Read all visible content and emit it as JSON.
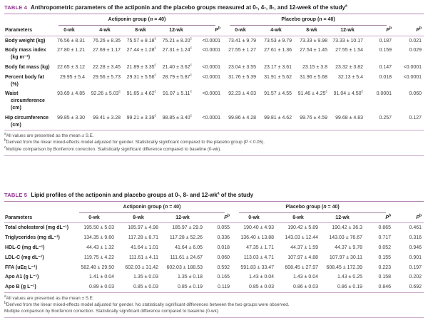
{
  "colors": {
    "table_label": "#8e2f8e",
    "rule": "#c7a3c7",
    "rule_dark": "#b286b2",
    "text": "#3a3a3a"
  },
  "table4": {
    "label": "TABLE 4",
    "title_pre": " Anthropometric parameters of the actiponin and the placebo groups measured at 0-, 4-, 8-, and 12-week of the study",
    "title_sup": "a",
    "title_post": "",
    "groups": [
      {
        "pre": "Actiponin group (",
        "n": "n",
        "post": " = 40)"
      },
      {
        "pre": "Placebo group (",
        "n": "n",
        "post": " = 40)"
      }
    ],
    "col_headers": {
      "parameters": "Parameters",
      "weeks1": [
        "0-wk",
        "4-wk",
        "8-wk",
        "12-wk"
      ],
      "weeks2": [
        "0-wk",
        "4-wk",
        "8-wk",
        "12-wk"
      ],
      "p": "P",
      "p_sup": "b"
    },
    "rows": [
      {
        "label": "Body weight (kg)",
        "values": [
          "76.56 ± 8.31",
          "76.26 ± 8.35",
          "75.57 ± 8.18^c",
          "75.21 ± 8.20^c",
          "<0.0001",
          "73.41 ± 9.79",
          "73.53 ± 9.79",
          "73.33 ± 9.98",
          "73.33 ± 10.17",
          "0.187",
          "0.021"
        ]
      },
      {
        "label": "Body mass index (kg m⁻²)",
        "values": [
          "27.80 ± 1.21",
          "27.69 ± 1.17",
          "27.44 ± 1.28^c",
          "27.31 ± 1.24^c",
          "<0.0001",
          "27.55 ± 1.27",
          "27.61 ± 1.36",
          "27.54 ± 1.45",
          "27.55 ± 1.54",
          "0.159",
          "0.029"
        ]
      },
      {
        "label": "Body fat mass (kg)",
        "values": [
          "22.65 ± 3.12",
          "22.28 ± 3.45",
          "21.89 ± 3.35^c",
          "21.40 ± 3.62^c",
          "<0.0001",
          "23.04 ± 3.55",
          "23.17 ± 3.61",
          "23.15 ± 3.8",
          "23.32 ± 3.82",
          "0.147",
          "<0.0001"
        ]
      },
      {
        "label": "Percent body fat (%)",
        "values": [
          "29.95 ± 5.4",
          "29.56 ± 5.73",
          "29.31 ± 5.56^c",
          "28.79 ± 5.87^c",
          "<0.0001",
          "31.76 ± 5.39",
          "31.91 ± 5.62",
          "31.96 ± 5.68",
          "32.13 ± 5.4",
          "0.018",
          "<0.0001"
        ]
      },
      {
        "label": "Waist circumference (cm)",
        "values": [
          "93.69 ± 4.85",
          "92.26 ± 5.03^c",
          "91.65 ± 4.62^c",
          "91.07 ± 5.11^c",
          "<0.0001",
          "92.23 ± 4.03",
          "91.57 ± 4.55",
          "91.46 ± 4.25^c",
          "91.04 ± 4.50^c",
          "0.0001",
          "0.060"
        ]
      },
      {
        "label": "Hip circumference (cm)",
        "values": [
          "99.85 ± 3.30",
          "99.41 ± 3.28",
          "99.21 ± 3.39^c",
          "98.85 ± 3.40^c",
          "<0.0001",
          "99.86 ± 4.28",
          "99.81 ± 4.62",
          "99.76 ± 4.59",
          "99.68 ± 4.83",
          "0.257",
          "0.127"
        ]
      }
    ],
    "footnotes": [
      {
        "sup": "a",
        "text": "All values are presented as the mean ± S.E."
      },
      {
        "sup": "b",
        "text": "Derived from the linear mixed-effects model adjusted for gender. Statistically significant compared to the placebo group (P < 0.05)."
      },
      {
        "sup": "c",
        "text": "Multiple comparison by Bonferroni correction. Statistically significant difference compared to baseline (0-wk)."
      }
    ]
  },
  "table5": {
    "label": "TABLE 5",
    "title_pre": " Lipid profiles of the actiponin and placebo groups at 0-, 8- and 12-wk",
    "title_sup": "a",
    "title_post": " of the study",
    "groups": [
      {
        "pre": "Actiponin group (",
        "n": "n",
        "post": " = 40)"
      },
      {
        "pre": "Placebo group (",
        "n": "n",
        "post": " = 40)"
      }
    ],
    "col_headers": {
      "parameters": "Parameters",
      "weeks1": [
        "0-wk",
        "8-wk",
        "12-wk"
      ],
      "weeks2": [
        "0-wk",
        "8-wk",
        "12-wk"
      ],
      "p": "P",
      "p_sup": "b"
    },
    "rows": [
      {
        "label": "Total cholesterol (mg dL⁻¹)",
        "values": [
          "195.50 ± 5.03",
          "185.97 ± 4.98",
          "185.97 ± 29.9",
          "0.055",
          "190.40 ± 4.93",
          "190.42 ± 5.89",
          "190.42 ± 36.3",
          "0.865",
          "0.461"
        ]
      },
      {
        "label": "Triglycerides (mg dL⁻¹)",
        "values": [
          "134.35 ± 9.60",
          "117.28 ± 8.71",
          "117.28 ± 52.26",
          "0.336",
          "136.40 ± 13.88",
          "143.03 ± 12.44",
          "143.03 ± 76.67",
          "0.717",
          "0.316"
        ]
      },
      {
        "label": "HDL-C (mg dL⁻¹)",
        "values": [
          "44.43 ± 1.32",
          "41.64 ± 1.01",
          "41.64 ± 6.05",
          "0.018",
          "47.35 ± 1.71",
          "44.37 ± 1.59",
          "44.37 ± 9.78",
          "0.052",
          "0.946"
        ]
      },
      {
        "label": "LDL-C (mg dL⁻¹)",
        "values": [
          "119.75 ± 4.22",
          "111.61 ± 4.11",
          "111.61 ± 24.67",
          "0.060",
          "113.03 ± 4.71",
          "107.97 ± 4.88",
          "107.97 ± 30.11",
          "0.155",
          "0.901"
        ]
      },
      {
        "label": "FFA (uEq L⁻¹)",
        "values": [
          "582.48 ± 29.50",
          "602.03 ± 31.42",
          "602.03 ± 188.53",
          "0.592",
          "591.83 ± 33.47",
          "608.45 ± 27.97",
          "608.45 ± 172.39",
          "0.223",
          "0.197"
        ]
      },
      {
        "label": "Apo A1 (g L⁻¹)",
        "values": [
          "1.41 ± 0.04",
          "1.35 ± 0.03",
          "1.35 ± 0.18",
          "0.165",
          "1.43 ± 0.04",
          "1.43 ± 0.04",
          "1.43 ± 0.25",
          "0.158",
          "0.202"
        ]
      },
      {
        "label": "Apo B (g L⁻¹)",
        "values": [
          "0.89 ± 0.03",
          "0.85 ± 0.03",
          "0.85 ± 0.19",
          "0.119",
          "0.85 ± 0.03",
          "0.86 ± 0.03",
          "0.86 ± 0.19",
          "0.846",
          "0.692"
        ]
      }
    ],
    "footnotes": [
      {
        "sup": "a",
        "text": "All values are presented as the mean ± S.E."
      },
      {
        "sup": "b",
        "text": "Derived from the linear mixed-effects model adjusted for gender. No statistically significant differences between the two groups were observed."
      },
      {
        "sup": "",
        "text": "Multiple comparison by Bonferroni correction. Statistically significant difference compared to baseline (0-wk)."
      }
    ]
  }
}
